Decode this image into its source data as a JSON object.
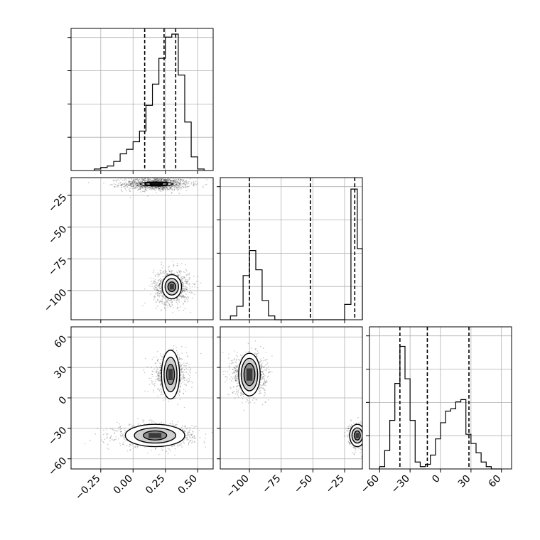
{
  "chart_data": {
    "type": "corner",
    "grid": true,
    "parameters": [
      {
        "key": "p1",
        "xlim": [
          -0.48,
          0.62
        ],
        "ticks": [
          -0.25,
          0.0,
          0.25,
          0.5
        ],
        "tick_labels": [
          "−0.25",
          "0.00",
          "0.25",
          "0.50"
        ],
        "quantiles": [
          0.09,
          0.24,
          0.33
        ],
        "hist": {
          "bin_edges": [
            -0.3,
            -0.25,
            -0.2,
            -0.15,
            -0.1,
            -0.05,
            0.0,
            0.05,
            0.1,
            0.15,
            0.2,
            0.25,
            0.3,
            0.35,
            0.4,
            0.45,
            0.5,
            0.55
          ],
          "counts": [
            1,
            2,
            3,
            6,
            11,
            14,
            19,
            26,
            43,
            57,
            74,
            88,
            90,
            63,
            32,
            9,
            1
          ],
          "ymax": 90
        }
      },
      {
        "key": "p2",
        "xlim": [
          -123,
          -11
        ],
        "ticks": [
          -100,
          -75,
          -50,
          -25
        ],
        "tick_labels": [
          "−100",
          "−75",
          "−50",
          "−25"
        ],
        "quantiles": [
          -100,
          -52,
          -17
        ],
        "hist": {
          "bin_edges": [
            -115,
            -110,
            -105,
            -100,
            -95,
            -90,
            -85,
            -80,
            -75,
            -25,
            -20,
            -15,
            -10
          ],
          "counts": [
            2,
            7,
            23,
            36,
            26,
            10,
            2,
            0,
            0,
            8,
            68,
            37
          ],
          "ymax": 71
        }
      },
      {
        "key": "p3",
        "xlim": [
          -70,
          70
        ],
        "ticks": [
          -60,
          -30,
          0,
          30,
          60
        ],
        "tick_labels": [
          "−60",
          "−30",
          "0",
          "30",
          "60"
        ],
        "quantiles": [
          -40,
          -13,
          28
        ],
        "hist": {
          "bin_edges": [
            -60,
            -55,
            -50,
            -45,
            -40,
            -35,
            -30,
            -25,
            -20,
            -15,
            -10,
            -5,
            0,
            5,
            10,
            15,
            20,
            25,
            30,
            35,
            40,
            45,
            50,
            55,
            60
          ],
          "counts": [
            1,
            8,
            21,
            37,
            53,
            39,
            21,
            3,
            1,
            2,
            6,
            13,
            20,
            25,
            26,
            29,
            30,
            15,
            11,
            7,
            3,
            1,
            0,
            0
          ],
          "ymax": 59
        }
      }
    ],
    "panels": [
      {
        "x": "p1",
        "y": "p2",
        "ylim": [
          -123,
          -11
        ],
        "yticks": [
          -100,
          -75,
          -50,
          -25
        ],
        "ytick_labels": [
          "−100",
          "−75",
          "−50",
          "−25"
        ],
        "modes": [
          {
            "x": 0.18,
            "y": -16,
            "sx": 0.13,
            "sy": 2.5,
            "n": 1200
          },
          {
            "x": 0.3,
            "y": -97,
            "sx": 0.07,
            "sy": 7,
            "n": 900
          }
        ],
        "contours": [
          {
            "mode": 0,
            "levels": [
              [
                0.125,
                1.6
              ],
              [
                0.09,
                1.1
              ],
              [
                0.05,
                0.6
              ]
            ]
          },
          {
            "mode": 1,
            "levels": [
              [
                0.075,
                9.5
              ],
              [
                0.052,
                6.5
              ],
              [
                0.03,
                3.8
              ]
            ]
          }
        ]
      },
      {
        "x": "p1",
        "y": "p3",
        "ylim": [
          -70,
          70
        ],
        "yticks": [
          -60,
          -30,
          0,
          30,
          60
        ],
        "ytick_labels": [
          "−60",
          "−30",
          "0",
          "30",
          "60"
        ],
        "modes": [
          {
            "x": 0.29,
            "y": 23,
            "sx": 0.065,
            "sy": 9.5,
            "n": 900
          },
          {
            "x": 0.17,
            "y": -37,
            "sx": 0.15,
            "sy": 5.5,
            "n": 1100
          }
        ],
        "contours": [
          {
            "mode": 0,
            "levels": [
              [
                0.07,
                24
              ],
              [
                0.05,
                17
              ],
              [
                0.03,
                10
              ]
            ]
          },
          {
            "mode": 1,
            "levels": [
              [
                0.23,
                11
              ],
              [
                0.16,
                7.5
              ],
              [
                0.09,
                4.5
              ]
            ]
          }
        ]
      },
      {
        "x": "p2",
        "y": "p3",
        "ylim": [
          -70,
          70
        ],
        "yticks": [
          -60,
          -30,
          0,
          30,
          60
        ],
        "ytick_labels": [
          "−60",
          "−30",
          "0",
          "30",
          "60"
        ],
        "modes": [
          {
            "x": -100,
            "y": 23,
            "sx": 6.5,
            "sy": 10,
            "n": 1100
          },
          {
            "x": -15,
            "y": -37,
            "sx": 3.5,
            "sy": 6,
            "n": 700
          }
        ],
        "contours": [
          {
            "mode": 0,
            "levels": [
              [
                8.5,
                21
              ],
              [
                6.5,
                16
              ],
              [
                4.3,
                11
              ]
            ]
          },
          {
            "mode": 1,
            "levels": [
              [
                6,
                11
              ],
              [
                4.2,
                7.5
              ],
              [
                2.4,
                4.5
              ]
            ]
          }
        ]
      }
    ]
  }
}
